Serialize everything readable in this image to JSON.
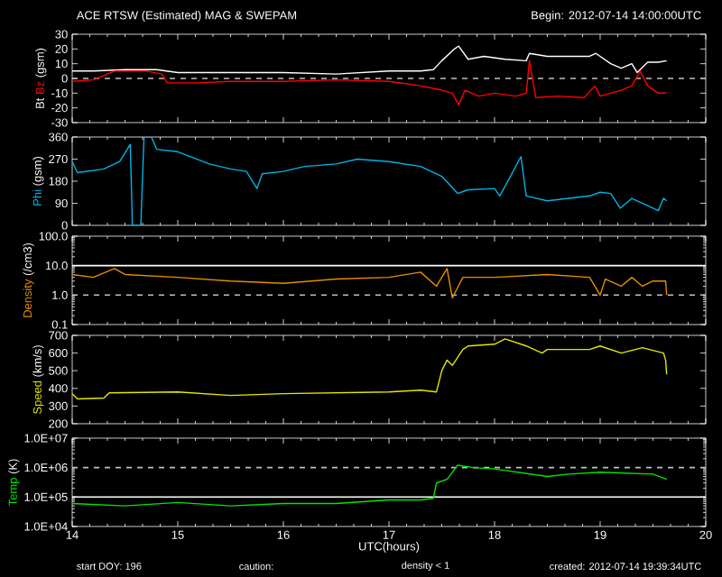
{
  "chart_data": [
    {
      "type": "line",
      "title": "ACE RTSW (Estimated) MAG & SWEPAM",
      "subtitle": "Begin: 2012-07-14 14:00:00UTC",
      "ylabel": "(gsm)",
      "xlim": [
        14,
        20
      ],
      "xticks": [
        14,
        15,
        16,
        17,
        18,
        19,
        20
      ],
      "ylim": [
        -30,
        30
      ],
      "yticks": [
        -30,
        -20,
        -10,
        0,
        10,
        20,
        30
      ],
      "tick_labels": "y",
      "ref_lines": [
        {
          "axis": "y",
          "value": 0,
          "color": "#c0c0c0",
          "line_style": "dashed"
        }
      ],
      "series": [
        {
          "name": "Bt",
          "color": "#ffffff",
          "x": [
            14.0,
            14.2,
            14.5,
            14.8,
            15.0,
            15.5,
            16.0,
            16.5,
            17.0,
            17.3,
            17.42,
            17.5,
            17.62,
            17.66,
            17.75,
            17.9,
            18.1,
            18.3,
            18.33,
            18.5,
            18.7,
            18.9,
            18.96,
            19.1,
            19.2,
            19.3,
            19.35,
            19.45,
            19.55,
            19.63
          ],
          "values": [
            5,
            5,
            6,
            6,
            4,
            4,
            4,
            3,
            5,
            5,
            6,
            12,
            20,
            22,
            13,
            15,
            13,
            12,
            17,
            15,
            15,
            15,
            17,
            10,
            7,
            10,
            4,
            11,
            11,
            12
          ]
        },
        {
          "name": "Bz",
          "color": "#ff0000",
          "x": [
            14.0,
            14.2,
            14.4,
            14.7,
            14.85,
            14.9,
            15.2,
            15.5,
            16.0,
            16.5,
            17.0,
            17.3,
            17.5,
            17.6,
            17.66,
            17.72,
            17.85,
            18.0,
            18.2,
            18.3,
            18.33,
            18.39,
            18.6,
            18.85,
            18.95,
            19.0,
            19.2,
            19.3,
            19.38,
            19.45,
            19.55,
            19.63
          ],
          "values": [
            -2,
            -1,
            5,
            5,
            3,
            -3,
            -3,
            -2,
            -2,
            -1,
            -2,
            -5,
            -8,
            -10,
            -18,
            -8,
            -12,
            -10,
            -12,
            -10,
            12,
            -13,
            -12,
            -13,
            -5,
            -12,
            -8,
            -5,
            5,
            -5,
            -10,
            -10
          ]
        }
      ]
    },
    {
      "type": "line",
      "ylabel": "(gsm)",
      "xlim": [
        14,
        20
      ],
      "xticks": [
        14,
        15,
        16,
        17,
        18,
        19,
        20
      ],
      "ylim": [
        0,
        360
      ],
      "yticks": [
        0,
        90,
        180,
        270,
        360
      ],
      "tick_labels": "y",
      "series": [
        {
          "name": "Phi",
          "color": "#00b4e6",
          "x": [
            14.0,
            14.05,
            14.3,
            14.45,
            14.55,
            14.57,
            14.65,
            14.68,
            14.75,
            14.8,
            15.0,
            15.3,
            15.5,
            15.65,
            15.75,
            15.8,
            16.0,
            16.2,
            16.5,
            16.7,
            17.0,
            17.3,
            17.5,
            17.65,
            17.75,
            18.0,
            18.05,
            18.25,
            18.3,
            18.5,
            18.7,
            18.9,
            19.0,
            19.1,
            19.19,
            19.3,
            19.45,
            19.55,
            19.6,
            19.63
          ],
          "values": [
            260,
            215,
            230,
            260,
            330,
            0,
            0,
            360,
            360,
            310,
            300,
            250,
            230,
            220,
            150,
            210,
            220,
            240,
            250,
            270,
            260,
            240,
            200,
            130,
            145,
            150,
            120,
            280,
            120,
            100,
            110,
            120,
            135,
            130,
            70,
            110,
            80,
            60,
            110,
            100
          ]
        }
      ]
    },
    {
      "type": "line",
      "ylabel": "(/cm3)",
      "log": "y",
      "xlim": [
        14,
        20
      ],
      "xticks": [
        14,
        15,
        16,
        17,
        18,
        19,
        20
      ],
      "ylim": [
        0.1,
        100
      ],
      "yticks": [
        0.1,
        {
          "value": 1,
          "label": "1.0"
        },
        {
          "value": 10,
          "label": "10.0"
        },
        {
          "value": 100,
          "label": "100.0"
        }
      ],
      "tick_labels": "y",
      "ref_lines": [
        {
          "axis": "y",
          "value": 1,
          "color": "#c0c0c0",
          "line_style": "dashed"
        },
        {
          "axis": "y",
          "value": 10,
          "color": "#ffffff",
          "line_style": "solid"
        }
      ],
      "series": [
        {
          "name": "Density",
          "color": "#e68c00",
          "x": [
            14.0,
            14.2,
            14.4,
            14.5,
            15.0,
            15.5,
            16.0,
            16.5,
            17.0,
            17.3,
            17.45,
            17.55,
            17.6,
            17.7,
            18.0,
            18.5,
            18.9,
            19.0,
            19.05,
            19.2,
            19.3,
            19.4,
            19.5,
            19.62,
            19.63
          ],
          "values": [
            5,
            4,
            8,
            5,
            4,
            3,
            2.5,
            3.5,
            4,
            6,
            2,
            8,
            0.8,
            4,
            4,
            5,
            4,
            1,
            3.5,
            2,
            4,
            2,
            3,
            3,
            1
          ]
        }
      ]
    },
    {
      "type": "line",
      "ylabel": "(km/s)",
      "xlim": [
        14,
        20
      ],
      "xticks": [
        14,
        15,
        16,
        17,
        18,
        19,
        20
      ],
      "ylim": [
        200,
        700
      ],
      "yticks": [
        200,
        300,
        400,
        500,
        600,
        700
      ],
      "tick_labels": "y",
      "series": [
        {
          "name": "Speed",
          "color": "#e6e600",
          "x": [
            14.0,
            14.05,
            14.3,
            14.35,
            15.0,
            15.5,
            16.0,
            16.5,
            17.0,
            17.3,
            17.45,
            17.5,
            17.55,
            17.6,
            17.7,
            17.75,
            18.0,
            18.1,
            18.3,
            18.45,
            18.5,
            18.9,
            19.0,
            19.2,
            19.4,
            19.6,
            19.62,
            19.63
          ],
          "values": [
            370,
            340,
            345,
            375,
            380,
            360,
            370,
            375,
            380,
            390,
            380,
            500,
            560,
            530,
            620,
            640,
            650,
            680,
            640,
            600,
            620,
            620,
            640,
            600,
            630,
            600,
            560,
            480
          ]
        }
      ]
    },
    {
      "type": "line",
      "ylabel": "(K)",
      "xlabel": "UTC(hours)",
      "log": "y",
      "xlim": [
        14,
        20
      ],
      "xticks": [
        14,
        15,
        16,
        17,
        18,
        19,
        20
      ],
      "ylim": [
        10000,
        10000000
      ],
      "yticks": [
        {
          "value": 10000,
          "label": "1.0E+04"
        },
        {
          "value": 100000,
          "label": "1.0E+05"
        },
        {
          "value": 1000000,
          "label": "1.0E+06"
        },
        {
          "value": 10000000,
          "label": "1.0E+07"
        }
      ],
      "ref_lines": [
        {
          "axis": "y",
          "value": 1000000,
          "color": "#c0c0c0",
          "line_style": "dashed"
        },
        {
          "axis": "y",
          "value": 100000,
          "color": "#ffffff",
          "line_style": "solid"
        }
      ],
      "annotations": [
        "start DOY: 196",
        "caution:",
        "density < 1",
        "created: 2012-07-14 19:39:34UTC"
      ],
      "series": [
        {
          "name": "Temp",
          "color": "#00e600",
          "x": [
            14.0,
            14.5,
            15.0,
            15.5,
            16.0,
            16.5,
            17.0,
            17.3,
            17.42,
            17.45,
            17.55,
            17.65,
            17.8,
            18.0,
            18.5,
            18.7,
            19.0,
            19.5,
            19.63
          ],
          "values": [
            60000,
            50000,
            65000,
            50000,
            60000,
            60000,
            80000,
            80000,
            90000,
            300000,
            400000,
            1200000,
            1000000,
            900000,
            500000,
            600000,
            700000,
            600000,
            400000
          ]
        }
      ]
    }
  ]
}
